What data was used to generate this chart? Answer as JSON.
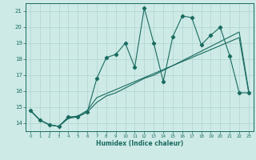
{
  "xlabel": "Humidex (Indice chaleur)",
  "bg_color": "#cdeae6",
  "grid_color": "#afd4d0",
  "line_color": "#1a6b60",
  "xlim": [
    -0.5,
    23.5
  ],
  "ylim": [
    13.5,
    21.5
  ],
  "xticks": [
    0,
    1,
    2,
    3,
    4,
    5,
    6,
    7,
    8,
    9,
    10,
    11,
    12,
    13,
    14,
    15,
    16,
    17,
    18,
    19,
    20,
    21,
    22,
    23
  ],
  "yticks": [
    14,
    15,
    16,
    17,
    18,
    19,
    20,
    21
  ],
  "s1_x": [
    0,
    1,
    2,
    3,
    4,
    5,
    6,
    7,
    8,
    9,
    10,
    11,
    12,
    13,
    14,
    15,
    16,
    17,
    18,
    19,
    20,
    21,
    22,
    23
  ],
  "s1_y": [
    14.8,
    14.2,
    13.9,
    13.8,
    14.4,
    14.4,
    14.7,
    16.8,
    18.1,
    18.3,
    19.0,
    17.5,
    21.2,
    19.0,
    16.6,
    19.4,
    20.7,
    20.6,
    18.9,
    19.5,
    20.0,
    18.2,
    15.9,
    15.9
  ],
  "s2_x": [
    0,
    1,
    2,
    3,
    4,
    5,
    6,
    7,
    8,
    9,
    10,
    11,
    12,
    13,
    14,
    15,
    16,
    17,
    18,
    19,
    20,
    21,
    22,
    23
  ],
  "s2_y": [
    14.8,
    14.2,
    13.9,
    13.8,
    14.35,
    14.45,
    14.8,
    15.6,
    15.85,
    16.1,
    16.35,
    16.6,
    16.85,
    17.1,
    17.35,
    17.6,
    17.85,
    18.1,
    18.35,
    18.6,
    18.85,
    19.1,
    19.35,
    15.9
  ],
  "s3_x": [
    0,
    1,
    2,
    3,
    4,
    5,
    6,
    7,
    8,
    9,
    10,
    11,
    12,
    13,
    14,
    15,
    16,
    17,
    18,
    19,
    20,
    21,
    22,
    23
  ],
  "s3_y": [
    14.8,
    14.2,
    13.9,
    13.8,
    14.3,
    14.4,
    14.7,
    15.3,
    15.7,
    15.9,
    16.2,
    16.5,
    16.8,
    17.0,
    17.3,
    17.6,
    17.9,
    18.2,
    18.5,
    18.8,
    19.1,
    19.4,
    19.7,
    16.0
  ]
}
